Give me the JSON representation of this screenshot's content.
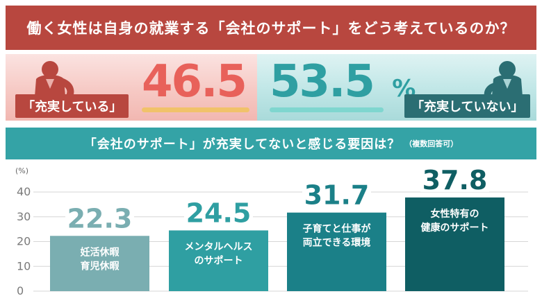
{
  "header": {
    "title": "働く女性は自身の就業する「会社のサポート」をどう考えているのか？"
  },
  "kpi": {
    "left": {
      "tag": "「充実している」",
      "value": "46.5",
      "unit": "%",
      "color": "#e8615a"
    },
    "right": {
      "tag": "「充実していない」",
      "value": "53.5",
      "unit": "%",
      "color": "#2f9fa2"
    }
  },
  "section": {
    "title": "「会社のサポート」が充実してないと感じる要因は？",
    "note": "（複数回答可）"
  },
  "chart_data": {
    "type": "bar",
    "ylabel": "(%)",
    "ylim": [
      0,
      40
    ],
    "yticks": [
      "0",
      "10",
      "20",
      "30",
      "40"
    ],
    "grid": true,
    "categories": [
      [
        "妊活休暇",
        "育児休暇"
      ],
      [
        "メンタルヘルス",
        "のサポート"
      ],
      [
        "子育てと仕事が",
        "両立できる環境"
      ],
      [
        "女性特有の",
        "健康のサポート"
      ]
    ],
    "values": [
      22.3,
      24.5,
      31.7,
      37.8
    ],
    "value_labels": [
      "22.3",
      "24.5",
      "31.7",
      "37.8"
    ],
    "colors": [
      "#7aaeb1",
      "#2f9fa2",
      "#1b8088",
      "#0f5e63"
    ]
  }
}
